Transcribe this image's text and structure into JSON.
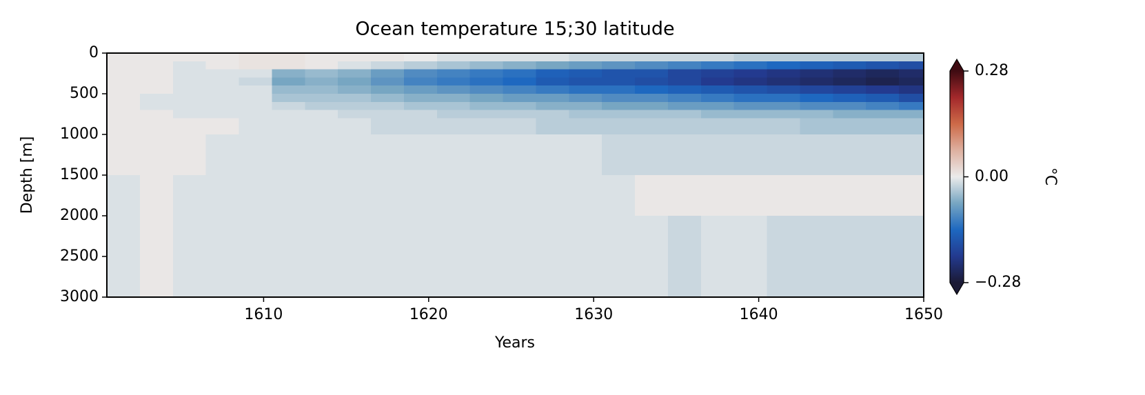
{
  "chart_data": {
    "type": "heatmap",
    "title": "Ocean temperature 15;30 latitude",
    "x_label": "Years",
    "y_label": "Depth [m]",
    "colorbar_label": "°C",
    "x": [
      1601.5,
      1603.5,
      1605.5,
      1607.5,
      1609.5,
      1611.5,
      1613.5,
      1615.5,
      1617.5,
      1619.5,
      1621.5,
      1623.5,
      1625.5,
      1627.5,
      1629.5,
      1631.5,
      1633.5,
      1635.5,
      1637.5,
      1639.5,
      1641.5,
      1643.5,
      1645.5,
      1647.5,
      1649.5
    ],
    "x_cell_width": 2,
    "depth_edges": [
      0,
      100,
      200,
      300,
      400,
      500,
      600,
      700,
      800,
      1000,
      1500,
      2000,
      3000
    ],
    "values": [
      [
        0.005,
        0.005,
        0.005,
        0.005,
        0.01,
        0.01,
        0.005,
        0.005,
        0.005,
        0.0,
        -0.01,
        -0.01,
        -0.01,
        -0.01,
        -0.02,
        -0.02,
        -0.02,
        -0.02,
        -0.02,
        -0.03,
        -0.03,
        -0.03,
        -0.03,
        -0.03,
        -0.03
      ],
      [
        0.005,
        0.005,
        -0.01,
        0.005,
        0.01,
        0.01,
        0.005,
        -0.01,
        -0.02,
        -0.03,
        -0.04,
        -0.05,
        -0.06,
        -0.07,
        -0.08,
        -0.09,
        -0.1,
        -0.11,
        -0.12,
        -0.13,
        -0.14,
        -0.15,
        -0.16,
        -0.17,
        -0.18
      ],
      [
        0.005,
        0.005,
        -0.01,
        -0.01,
        -0.01,
        -0.06,
        -0.05,
        -0.06,
        -0.08,
        -0.1,
        -0.11,
        -0.12,
        -0.13,
        -0.15,
        -0.16,
        -0.17,
        -0.17,
        -0.19,
        -0.2,
        -0.21,
        -0.22,
        -0.23,
        -0.24,
        -0.25,
        -0.24
      ],
      [
        0.005,
        0.005,
        -0.01,
        -0.01,
        -0.02,
        -0.07,
        -0.06,
        -0.07,
        -0.09,
        -0.11,
        -0.12,
        -0.13,
        -0.14,
        -0.16,
        -0.17,
        -0.17,
        -0.18,
        -0.19,
        -0.21,
        -0.22,
        -0.23,
        -0.24,
        -0.25,
        -0.26,
        -0.25
      ],
      [
        0.005,
        0.005,
        -0.01,
        -0.01,
        -0.01,
        -0.05,
        -0.05,
        -0.06,
        -0.07,
        -0.08,
        -0.09,
        -0.1,
        -0.11,
        -0.12,
        -0.13,
        -0.13,
        -0.14,
        -0.15,
        -0.16,
        -0.17,
        -0.18,
        -0.19,
        -0.2,
        -0.21,
        -0.22
      ],
      [
        0.005,
        -0.01,
        -0.01,
        -0.01,
        -0.01,
        -0.04,
        -0.04,
        -0.04,
        -0.05,
        -0.06,
        -0.06,
        -0.07,
        -0.08,
        -0.08,
        -0.09,
        -0.1,
        -0.1,
        -0.11,
        -0.12,
        -0.13,
        -0.13,
        -0.14,
        -0.15,
        -0.16,
        -0.18
      ],
      [
        0.005,
        -0.01,
        -0.01,
        -0.01,
        -0.01,
        -0.02,
        -0.03,
        -0.03,
        -0.03,
        -0.04,
        -0.04,
        -0.05,
        -0.05,
        -0.06,
        -0.06,
        -0.07,
        -0.07,
        -0.08,
        -0.08,
        -0.09,
        -0.09,
        -0.1,
        -0.1,
        -0.11,
        -0.12
      ],
      [
        0.005,
        0.005,
        -0.01,
        -0.01,
        -0.01,
        -0.01,
        -0.01,
        -0.02,
        -0.02,
        -0.02,
        -0.03,
        -0.03,
        -0.03,
        -0.03,
        -0.04,
        -0.04,
        -0.04,
        -0.04,
        -0.05,
        -0.05,
        -0.05,
        -0.05,
        -0.06,
        -0.06,
        -0.06
      ],
      [
        0.005,
        0.005,
        0.005,
        0.005,
        -0.01,
        -0.01,
        -0.01,
        -0.01,
        -0.02,
        -0.02,
        -0.02,
        -0.02,
        -0.02,
        -0.03,
        -0.03,
        -0.03,
        -0.03,
        -0.03,
        -0.03,
        -0.03,
        -0.03,
        -0.04,
        -0.04,
        -0.04,
        -0.04
      ],
      [
        0.005,
        0.005,
        0.005,
        -0.01,
        -0.01,
        -0.01,
        -0.01,
        -0.01,
        -0.01,
        -0.01,
        -0.01,
        -0.01,
        -0.01,
        -0.01,
        -0.01,
        -0.02,
        -0.02,
        -0.02,
        -0.02,
        -0.02,
        -0.02,
        -0.02,
        -0.02,
        -0.02,
        -0.02
      ],
      [
        -0.01,
        0.005,
        -0.01,
        -0.01,
        -0.01,
        -0.01,
        -0.01,
        -0.01,
        -0.01,
        -0.01,
        -0.01,
        -0.01,
        -0.01,
        -0.01,
        -0.01,
        -0.01,
        0.005,
        0.005,
        0.005,
        0.005,
        0.005,
        0.005,
        0.005,
        0.005,
        0.005
      ],
      [
        -0.01,
        0.005,
        -0.01,
        -0.01,
        -0.01,
        -0.01,
        -0.01,
        -0.01,
        -0.01,
        -0.01,
        -0.01,
        -0.01,
        -0.01,
        -0.01,
        -0.01,
        -0.01,
        -0.01,
        -0.02,
        -0.01,
        -0.01,
        -0.02,
        -0.02,
        -0.02,
        -0.02,
        -0.02
      ]
    ],
    "xlim": [
      1600.5,
      1650
    ],
    "xticks": [
      1610,
      1620,
      1630,
      1640,
      1650
    ],
    "ylim": [
      3000,
      0
    ],
    "yticks": [
      0,
      500,
      1000,
      1500,
      2000,
      2500,
      3000
    ],
    "clim": [
      -0.28,
      0.28
    ],
    "cticks": [
      {
        "value": -0.28,
        "label": "−0.28"
      },
      {
        "value": 0,
        "label": "0.00"
      },
      {
        "value": 0.28,
        "label": "0.28"
      }
    ],
    "colormap": [
      "#1b1a35",
      "#233a8f",
      "#1e68c0",
      "#77a6c2",
      "#ebebeb",
      "#deb0a0",
      "#cd6a48",
      "#a3282b",
      "#3f0b12"
    ]
  }
}
